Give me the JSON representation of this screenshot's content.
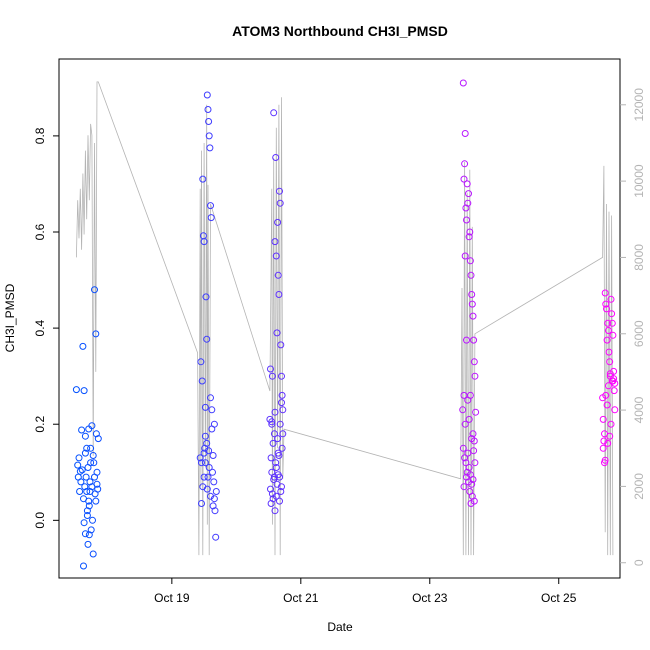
{
  "chart_data": {
    "type": "scatter",
    "title": "ATOM3 Northbound CH3I_PMSD",
    "xlabel": "Date",
    "ylabel": "CH3I_PMSD",
    "x_ticks": [
      {
        "value": 19,
        "label": "Oct 19"
      },
      {
        "value": 21,
        "label": "Oct 21"
      },
      {
        "value": 23,
        "label": "Oct 23"
      },
      {
        "value": 25,
        "label": "Oct 25"
      }
    ],
    "xlim": [
      17.25,
      25.95
    ],
    "ylim": [
      -0.12,
      0.96
    ],
    "y_ticks": [
      0.0,
      0.2,
      0.4,
      0.6,
      0.8
    ],
    "y_tick_labels": [
      "0.0",
      "0.2",
      "0.4",
      "0.6",
      "0.8"
    ],
    "y2_ticks": [
      0,
      2000,
      4000,
      6000,
      8000,
      10000,
      12000
    ],
    "y2_tick_labels": [
      "0",
      "2000",
      "4000",
      "6000",
      "8000",
      "10000",
      "12000"
    ],
    "y2lim": [
      -400,
      13200
    ],
    "y2_color": "#b4b4b4",
    "grid": false,
    "color_start": "#0050ff",
    "color_end": "#ff00ff",
    "altitude_trace": [
      [
        17.52,
        8000
      ],
      [
        17.54,
        9500
      ],
      [
        17.56,
        8500
      ],
      [
        17.58,
        9800
      ],
      [
        17.6,
        8200
      ],
      [
        17.62,
        10200
      ],
      [
        17.64,
        8600
      ],
      [
        17.66,
        10800
      ],
      [
        17.68,
        9000
      ],
      [
        17.7,
        11200
      ],
      [
        17.72,
        9500
      ],
      [
        17.74,
        11500
      ],
      [
        17.76,
        11200
      ],
      [
        17.78,
        2800
      ],
      [
        17.8,
        11000
      ],
      [
        17.82,
        5000
      ],
      [
        17.84,
        12600
      ],
      [
        17.86,
        12600
      ],
      [
        19.4,
        5500
      ],
      [
        19.42,
        200
      ],
      [
        19.44,
        9800
      ],
      [
        19.45,
        2000
      ],
      [
        19.46,
        10800
      ],
      [
        19.48,
        200
      ],
      [
        19.5,
        11000
      ],
      [
        19.52,
        2500
      ],
      [
        19.54,
        12000
      ],
      [
        19.55,
        1000
      ],
      [
        19.56,
        9900
      ],
      [
        19.58,
        200
      ],
      [
        19.6,
        9400
      ],
      [
        20.52,
        4500
      ],
      [
        20.55,
        9800
      ],
      [
        20.56,
        1000
      ],
      [
        20.58,
        10600
      ],
      [
        20.6,
        200
      ],
      [
        20.62,
        11400
      ],
      [
        20.64,
        3000
      ],
      [
        20.66,
        12000
      ],
      [
        20.68,
        200
      ],
      [
        20.7,
        12200
      ],
      [
        20.72,
        2200
      ],
      [
        20.74,
        3500
      ],
      [
        23.48,
        2200
      ],
      [
        23.5,
        7200
      ],
      [
        23.52,
        200
      ],
      [
        23.54,
        10500
      ],
      [
        23.56,
        200
      ],
      [
        23.58,
        9700
      ],
      [
        23.6,
        200
      ],
      [
        23.62,
        10300
      ],
      [
        23.64,
        200
      ],
      [
        23.66,
        8800
      ],
      [
        23.68,
        200
      ],
      [
        23.7,
        6000
      ],
      [
        25.68,
        8000
      ],
      [
        25.7,
        10400
      ],
      [
        25.72,
        800
      ],
      [
        25.74,
        9400
      ],
      [
        25.76,
        200
      ],
      [
        25.78,
        9200
      ],
      [
        25.8,
        200
      ],
      [
        25.82,
        9100
      ],
      [
        25.84,
        200
      ]
    ],
    "points": [
      [
        17.52,
        0.272
      ],
      [
        17.54,
        0.115
      ],
      [
        17.56,
        0.13
      ],
      [
        17.58,
        0.102
      ],
      [
        17.6,
        0.188
      ],
      [
        17.62,
        0.362
      ],
      [
        17.64,
        0.27
      ],
      [
        17.65,
        0.07
      ],
      [
        17.66,
        0.14
      ],
      [
        17.67,
        0.09
      ],
      [
        17.68,
        0.06
      ],
      [
        17.69,
        0.02
      ],
      [
        17.7,
        0.11
      ],
      [
        17.71,
        0.04
      ],
      [
        17.72,
        -0.03
      ],
      [
        17.73,
        0.08
      ],
      [
        17.74,
        0.15
      ],
      [
        17.75,
        -0.02
      ],
      [
        17.76,
        0.197
      ],
      [
        17.77,
        0.0
      ],
      [
        17.78,
        -0.07
      ],
      [
        17.79,
        0.12
      ],
      [
        17.8,
        0.48
      ],
      [
        17.81,
        0.055
      ],
      [
        17.82,
        0.388
      ],
      [
        17.83,
        0.18
      ],
      [
        17.84,
        0.1
      ],
      [
        17.85,
        0.065
      ],
      [
        17.86,
        0.17
      ],
      [
        17.55,
        0.09
      ],
      [
        17.57,
        0.06
      ],
      [
        17.59,
        0.08
      ],
      [
        17.61,
        0.105
      ],
      [
        17.63,
        0.045
      ],
      [
        17.66,
        0.175
      ],
      [
        17.68,
        0.15
      ],
      [
        17.7,
        -0.05
      ],
      [
        17.72,
        0.03
      ],
      [
        17.74,
        0.12
      ],
      [
        17.76,
        0.07
      ],
      [
        17.78,
        0.135
      ],
      [
        17.8,
        0.09
      ],
      [
        17.82,
        0.04
      ],
      [
        17.84,
        0.075
      ],
      [
        17.63,
        -0.095
      ],
      [
        17.64,
        -0.005
      ],
      [
        17.66,
        -0.028
      ],
      [
        17.69,
        0.01
      ],
      [
        17.71,
        0.19
      ],
      [
        17.73,
        0.06
      ],
      [
        19.44,
        0.13
      ],
      [
        19.45,
        0.33
      ],
      [
        19.46,
        0.12
      ],
      [
        19.47,
        0.29
      ],
      [
        19.48,
        0.71
      ],
      [
        19.49,
        0.592
      ],
      [
        19.5,
        0.58
      ],
      [
        19.51,
        0.15
      ],
      [
        19.52,
        0.235
      ],
      [
        19.53,
        0.465
      ],
      [
        19.54,
        0.377
      ],
      [
        19.55,
        0.885
      ],
      [
        19.56,
        0.855
      ],
      [
        19.57,
        0.83
      ],
      [
        19.58,
        0.8
      ],
      [
        19.59,
        0.775
      ],
      [
        19.6,
        0.655
      ],
      [
        19.61,
        0.63
      ],
      [
        19.62,
        0.23
      ],
      [
        19.63,
        0.1
      ],
      [
        19.64,
        0.03
      ],
      [
        19.65,
        0.08
      ],
      [
        19.66,
        0.2
      ],
      [
        19.67,
        0.02
      ],
      [
        19.68,
        -0.035
      ],
      [
        19.69,
        0.06
      ],
      [
        19.46,
        0.035
      ],
      [
        19.48,
        0.07
      ],
      [
        19.5,
        0.14
      ],
      [
        19.52,
        0.175
      ],
      [
        19.54,
        0.16
      ],
      [
        19.56,
        0.09
      ],
      [
        19.58,
        0.11
      ],
      [
        19.6,
        0.05
      ],
      [
        19.62,
        0.19
      ],
      [
        19.64,
        0.135
      ],
      [
        19.66,
        0.045
      ],
      [
        19.5,
        0.09
      ],
      [
        19.55,
        0.065
      ],
      [
        19.6,
        0.255
      ],
      [
        19.52,
        0.12
      ],
      [
        19.57,
        0.145
      ],
      [
        20.52,
        0.21
      ],
      [
        20.53,
        0.315
      ],
      [
        20.54,
        0.13
      ],
      [
        20.55,
        0.205
      ],
      [
        20.56,
        0.3
      ],
      [
        20.57,
        0.045
      ],
      [
        20.58,
        0.848
      ],
      [
        20.59,
        0.09
      ],
      [
        20.6,
        0.58
      ],
      [
        20.61,
        0.755
      ],
      [
        20.62,
        0.55
      ],
      [
        20.63,
        0.39
      ],
      [
        20.64,
        0.62
      ],
      [
        20.65,
        0.51
      ],
      [
        20.66,
        0.47
      ],
      [
        20.67,
        0.685
      ],
      [
        20.68,
        0.66
      ],
      [
        20.69,
        0.365
      ],
      [
        20.7,
        0.3
      ],
      [
        20.71,
        0.26
      ],
      [
        20.72,
        0.23
      ],
      [
        20.53,
        0.065
      ],
      [
        20.55,
        0.1
      ],
      [
        20.57,
        0.16
      ],
      [
        20.59,
        0.18
      ],
      [
        20.61,
        0.12
      ],
      [
        20.63,
        0.075
      ],
      [
        20.65,
        0.14
      ],
      [
        20.67,
        0.09
      ],
      [
        20.69,
        0.06
      ],
      [
        20.71,
        0.15
      ],
      [
        20.54,
        0.035
      ],
      [
        20.56,
        0.055
      ],
      [
        20.58,
        0.085
      ],
      [
        20.6,
        0.02
      ],
      [
        20.62,
        0.11
      ],
      [
        20.64,
        0.17
      ],
      [
        20.66,
        0.135
      ],
      [
        20.68,
        0.2
      ],
      [
        20.7,
        0.245
      ],
      [
        20.72,
        0.18
      ],
      [
        20.55,
        0.2
      ],
      [
        20.6,
        0.225
      ],
      [
        20.65,
        0.095
      ],
      [
        20.7,
        0.07
      ],
      [
        20.62,
        0.05
      ],
      [
        20.67,
        0.04
      ],
      [
        23.52,
        0.91
      ],
      [
        23.53,
        0.71
      ],
      [
        23.54,
        0.742
      ],
      [
        23.55,
        0.805
      ],
      [
        23.56,
        0.65
      ],
      [
        23.57,
        0.625
      ],
      [
        23.58,
        0.7
      ],
      [
        23.59,
        0.66
      ],
      [
        23.6,
        0.68
      ],
      [
        23.61,
        0.59
      ],
      [
        23.62,
        0.6
      ],
      [
        23.63,
        0.54
      ],
      [
        23.64,
        0.51
      ],
      [
        23.65,
        0.47
      ],
      [
        23.66,
        0.45
      ],
      [
        23.67,
        0.425
      ],
      [
        23.68,
        0.375
      ],
      [
        23.69,
        0.33
      ],
      [
        23.7,
        0.3
      ],
      [
        23.53,
        0.26
      ],
      [
        23.55,
        0.55
      ],
      [
        23.57,
        0.375
      ],
      [
        23.59,
        0.25
      ],
      [
        23.61,
        0.21
      ],
      [
        23.63,
        0.26
      ],
      [
        23.65,
        0.17
      ],
      [
        23.67,
        0.18
      ],
      [
        23.69,
        0.165
      ],
      [
        23.52,
        0.15
      ],
      [
        23.54,
        0.13
      ],
      [
        23.56,
        0.12
      ],
      [
        23.58,
        0.1
      ],
      [
        23.6,
        0.08
      ],
      [
        23.62,
        0.06
      ],
      [
        23.64,
        0.035
      ],
      [
        23.66,
        0.05
      ],
      [
        23.68,
        0.145
      ],
      [
        23.7,
        0.12
      ],
      [
        23.53,
        0.07
      ],
      [
        23.57,
        0.09
      ],
      [
        23.61,
        0.11
      ],
      [
        23.65,
        0.075
      ],
      [
        23.69,
        0.04
      ],
      [
        23.55,
        0.2
      ],
      [
        23.59,
        0.14
      ],
      [
        23.63,
        0.095
      ],
      [
        23.67,
        0.085
      ],
      [
        23.51,
        0.23
      ],
      [
        23.71,
        0.225
      ],
      [
        25.68,
        0.255
      ],
      [
        25.69,
        0.21
      ],
      [
        25.7,
        0.165
      ],
      [
        25.71,
        0.12
      ],
      [
        25.72,
        0.473
      ],
      [
        25.73,
        0.45
      ],
      [
        25.74,
        0.44
      ],
      [
        25.75,
        0.375
      ],
      [
        25.76,
        0.41
      ],
      [
        25.77,
        0.395
      ],
      [
        25.78,
        0.35
      ],
      [
        25.79,
        0.33
      ],
      [
        25.8,
        0.3
      ],
      [
        25.81,
        0.46
      ],
      [
        25.82,
        0.43
      ],
      [
        25.83,
        0.41
      ],
      [
        25.84,
        0.385
      ],
      [
        25.85,
        0.295
      ],
      [
        25.86,
        0.27
      ],
      [
        25.87,
        0.23
      ],
      [
        25.69,
        0.15
      ],
      [
        25.71,
        0.18
      ],
      [
        25.73,
        0.26
      ],
      [
        25.75,
        0.24
      ],
      [
        25.77,
        0.28
      ],
      [
        25.79,
        0.175
      ],
      [
        25.81,
        0.2
      ],
      [
        25.83,
        0.29
      ],
      [
        25.85,
        0.31
      ],
      [
        25.87,
        0.285
      ],
      [
        25.72,
        0.125
      ],
      [
        25.76,
        0.16
      ],
      [
        25.8,
        0.305
      ],
      [
        25.84,
        0.29
      ]
    ]
  }
}
